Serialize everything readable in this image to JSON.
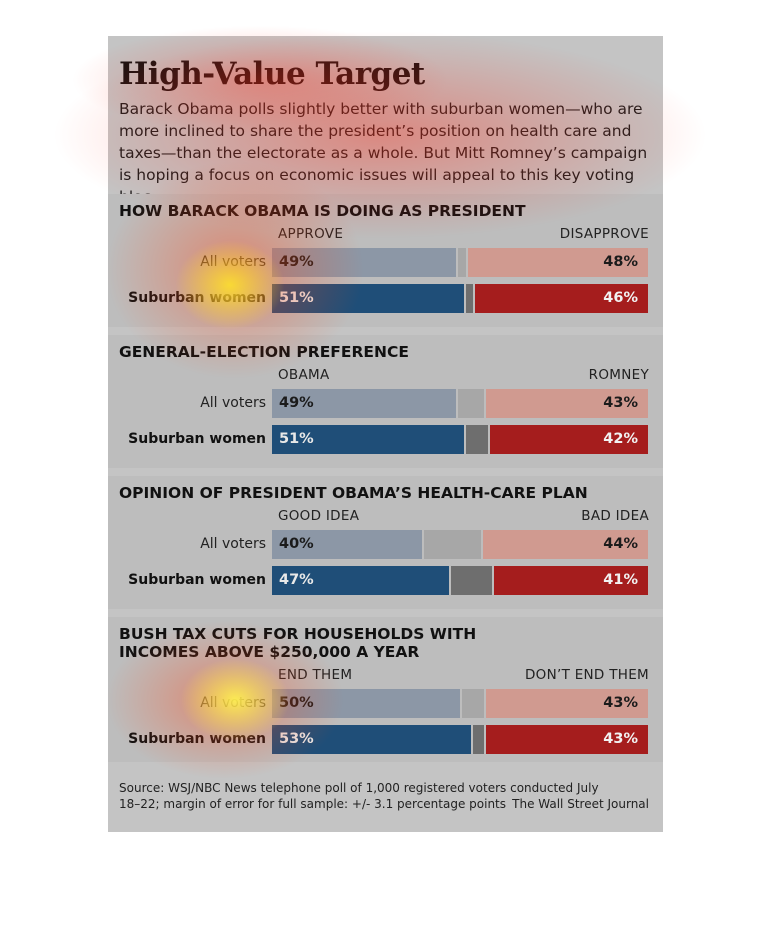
{
  "title": "High-Value Target",
  "intro": "Barack Obama polls slightly better with suburban women—who are more inclined to share the president’s position on health care and taxes—than the electorate as a whole. But Mitt Romney’s campaign is hoping a focus on economic issues will appeal to this key voting bloc.",
  "source": "Source: WSJ/NBC News telephone poll of 1,000 registered voters conducted July 18–22; margin of error for full sample: +/- 3.1 percentage points",
  "credit": "The Wall Street Journal",
  "colors": {
    "all_voters_left": "#8c97a6",
    "suburban_left": "#1f4e78",
    "all_voters_middle": "#a7a7a7",
    "suburban_middle": "#6e6e6e",
    "all_voters_right": "#d09a90",
    "suburban_right": "#a51d1d"
  },
  "chart_data": [
    {
      "type": "bar",
      "stacked": true,
      "title": "HOW BARACK OBAMA IS DOING AS PRESIDENT",
      "left_label": "APPROVE",
      "right_label": "DISAPPROVE",
      "rows": [
        {
          "label": "All voters",
          "left": 49,
          "right": 48
        },
        {
          "label": "Suburban women",
          "left": 51,
          "right": 46
        }
      ]
    },
    {
      "type": "bar",
      "stacked": true,
      "title": "GENERAL-ELECTION PREFERENCE",
      "left_label": "OBAMA",
      "right_label": "ROMNEY",
      "rows": [
        {
          "label": "All voters",
          "left": 49,
          "right": 43
        },
        {
          "label": "Suburban women",
          "left": 51,
          "right": 42
        }
      ]
    },
    {
      "type": "bar",
      "stacked": true,
      "title": "OPINION OF PRESIDENT OBAMA’S HEALTH-CARE PLAN",
      "left_label": "GOOD IDEA",
      "right_label": "BAD IDEA",
      "rows": [
        {
          "label": "All voters",
          "left": 40,
          "right": 44
        },
        {
          "label": "Suburban women",
          "left": 47,
          "right": 41
        }
      ]
    },
    {
      "type": "bar",
      "stacked": true,
      "title": "BUSH TAX CUTS FOR HOUSEHOLDS WITH INCOMES ABOVE $250,000 A YEAR",
      "left_label": "END THEM",
      "right_label": "DON’T END THEM",
      "rows": [
        {
          "label": "All voters",
          "left": 50,
          "right": 43
        },
        {
          "label": "Suburban women",
          "left": 53,
          "right": 43
        }
      ]
    }
  ]
}
